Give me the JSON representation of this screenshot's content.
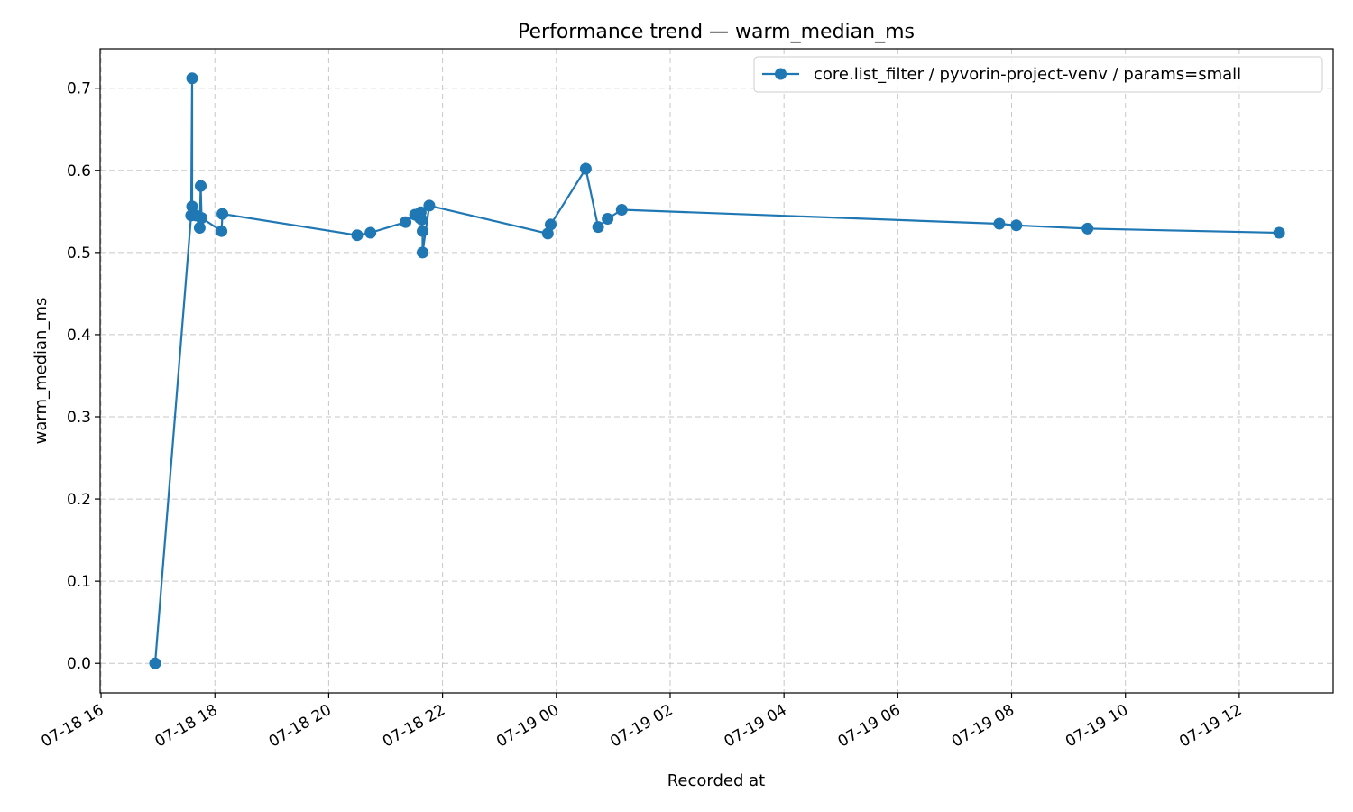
{
  "chart_data": {
    "type": "line",
    "title": "Performance trend — warm_median_ms",
    "xlabel": "Recorded at",
    "ylabel": "warm_median_ms",
    "x_axis": {
      "kind": "datetime",
      "range": [
        "2024-07-18T15:59:00",
        "2024-07-19T13:39:00"
      ],
      "ticks": [
        {
          "t": "2024-07-18T16:00:00",
          "label": "07-18 16"
        },
        {
          "t": "2024-07-18T18:00:00",
          "label": "07-18 18"
        },
        {
          "t": "2024-07-18T20:00:00",
          "label": "07-18 20"
        },
        {
          "t": "2024-07-18T22:00:00",
          "label": "07-18 22"
        },
        {
          "t": "2024-07-19T00:00:00",
          "label": "07-19 00"
        },
        {
          "t": "2024-07-19T02:00:00",
          "label": "07-19 02"
        },
        {
          "t": "2024-07-19T04:00:00",
          "label": "07-19 04"
        },
        {
          "t": "2024-07-19T06:00:00",
          "label": "07-19 06"
        },
        {
          "t": "2024-07-19T08:00:00",
          "label": "07-19 08"
        },
        {
          "t": "2024-07-19T10:00:00",
          "label": "07-19 10"
        },
        {
          "t": "2024-07-19T12:00:00",
          "label": "07-19 12"
        }
      ]
    },
    "y_axis": {
      "range": [
        -0.036,
        0.748
      ],
      "ticks": [
        {
          "v": 0.0,
          "label": "0.0"
        },
        {
          "v": 0.1,
          "label": "0.1"
        },
        {
          "v": 0.2,
          "label": "0.2"
        },
        {
          "v": 0.3,
          "label": "0.3"
        },
        {
          "v": 0.4,
          "label": "0.4"
        },
        {
          "v": 0.5,
          "label": "0.5"
        },
        {
          "v": 0.6,
          "label": "0.6"
        },
        {
          "v": 0.7,
          "label": "0.7"
        }
      ]
    },
    "grid": true,
    "legend_position": "top-right",
    "series": [
      {
        "name": "core.list_filter / pyvorin-project-venv / params=small",
        "color": "#1f77b4",
        "marker": "circle",
        "points": [
          {
            "x": "2024-07-18T16:57:00",
            "y": 0.0
          },
          {
            "x": "2024-07-18T17:35:00",
            "y": 0.545
          },
          {
            "x": "2024-07-18T17:36:00",
            "y": 0.712
          },
          {
            "x": "2024-07-18T17:36:00",
            "y": 0.556
          },
          {
            "x": "2024-07-18T17:40:00",
            "y": 0.545
          },
          {
            "x": "2024-07-18T17:44:00",
            "y": 0.53
          },
          {
            "x": "2024-07-18T17:45:00",
            "y": 0.581
          },
          {
            "x": "2024-07-18T17:46:00",
            "y": 0.542
          },
          {
            "x": "2024-07-18T18:07:00",
            "y": 0.526
          },
          {
            "x": "2024-07-18T18:08:00",
            "y": 0.547
          },
          {
            "x": "2024-07-18T20:30:00",
            "y": 0.521
          },
          {
            "x": "2024-07-18T20:44:00",
            "y": 0.524
          },
          {
            "x": "2024-07-18T21:21:00",
            "y": 0.537
          },
          {
            "x": "2024-07-18T21:31:00",
            "y": 0.546
          },
          {
            "x": "2024-07-18T21:36:00",
            "y": 0.542
          },
          {
            "x": "2024-07-18T21:37:00",
            "y": 0.549
          },
          {
            "x": "2024-07-18T21:38:00",
            "y": 0.54
          },
          {
            "x": "2024-07-18T21:39:00",
            "y": 0.526
          },
          {
            "x": "2024-07-18T21:39:00",
            "y": 0.5
          },
          {
            "x": "2024-07-18T21:46:00",
            "y": 0.557
          },
          {
            "x": "2024-07-18T23:51:00",
            "y": 0.523
          },
          {
            "x": "2024-07-18T23:54:00",
            "y": 0.534
          },
          {
            "x": "2024-07-19T00:31:00",
            "y": 0.602
          },
          {
            "x": "2024-07-19T00:44:00",
            "y": 0.531
          },
          {
            "x": "2024-07-19T00:54:00",
            "y": 0.541
          },
          {
            "x": "2024-07-19T01:09:00",
            "y": 0.552
          },
          {
            "x": "2024-07-19T07:47:00",
            "y": 0.535
          },
          {
            "x": "2024-07-19T08:05:00",
            "y": 0.533
          },
          {
            "x": "2024-07-19T09:20:00",
            "y": 0.529
          },
          {
            "x": "2024-07-19T12:42:00",
            "y": 0.524
          }
        ]
      }
    ]
  }
}
